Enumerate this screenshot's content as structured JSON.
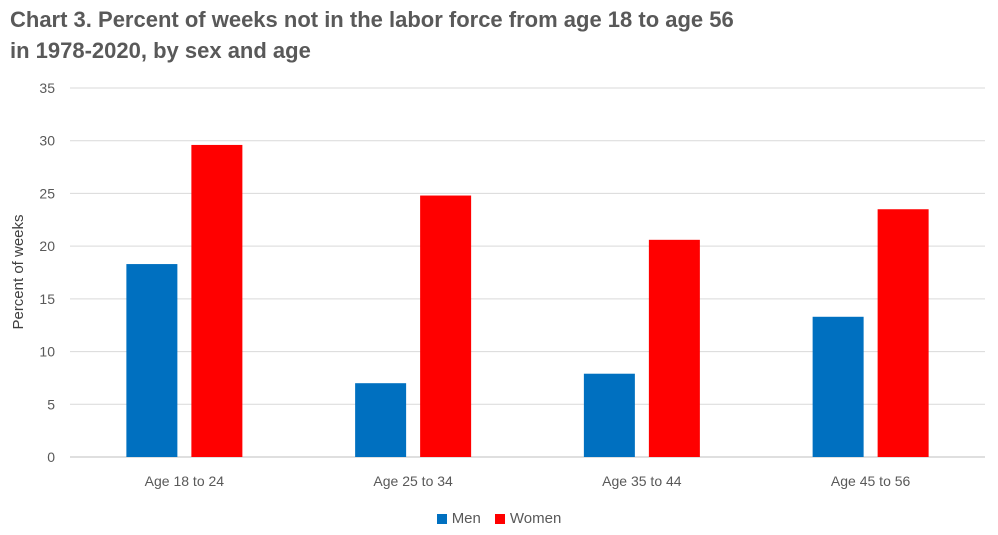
{
  "chart_data": {
    "type": "bar",
    "title_line1": "Chart 3. Percent of weeks not in the labor force from age 18 to age 56",
    "title_line2": "in 1978-2020, by sex and age",
    "xlabel": "",
    "ylabel": "Percent of weeks",
    "ylim": [
      0,
      35
    ],
    "yticks": [
      0,
      5,
      10,
      15,
      20,
      25,
      30,
      35
    ],
    "grid": true,
    "legend_position": "bottom",
    "categories": [
      "Age 18 to 24",
      "Age 25 to 34",
      "Age 35 to 44",
      "Age 45 to 56"
    ],
    "series": [
      {
        "name": "Men",
        "color": "#0070C0",
        "values": [
          18.3,
          7.0,
          7.9,
          13.3
        ]
      },
      {
        "name": "Women",
        "color": "#FF0000",
        "values": [
          29.6,
          24.8,
          20.6,
          23.5
        ]
      }
    ]
  }
}
